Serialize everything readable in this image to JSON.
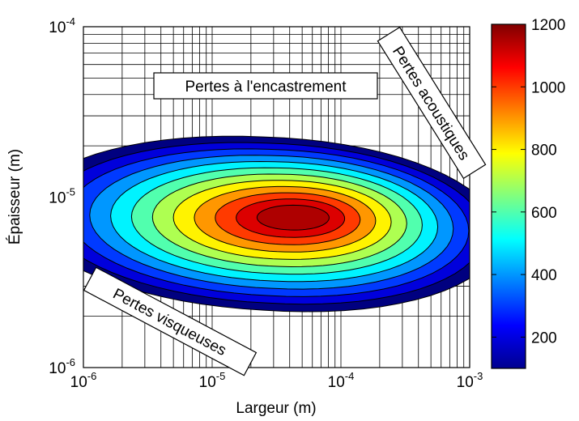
{
  "chart_data": {
    "type": "heatmap",
    "subtype": "filled-contour",
    "xlabel": "Largeur (m)",
    "ylabel": "Épaisseur (m)",
    "x_scale": "log",
    "y_scale": "log",
    "xlim": [
      1e-06,
      0.001
    ],
    "ylim": [
      1e-06,
      0.0001
    ],
    "x_ticks": [
      {
        "base": "10",
        "exp": "-6"
      },
      {
        "base": "10",
        "exp": "-5"
      },
      {
        "base": "10",
        "exp": "-4"
      },
      {
        "base": "10",
        "exp": "-3"
      }
    ],
    "y_ticks": [
      {
        "base": "10",
        "exp": "-6"
      },
      {
        "base": "10",
        "exp": "-5"
      },
      {
        "base": "10",
        "exp": "-4"
      }
    ],
    "grid": true,
    "colormap": "jet",
    "colorbar": {
      "range": [
        100,
        1200
      ],
      "ticks": [
        "200",
        "400",
        "600",
        "800",
        "1000",
        "1200"
      ]
    },
    "peak": {
      "x": 2.5e-05,
      "y": 7e-06,
      "value": 1200
    },
    "contour_levels": [
      100,
      200,
      300,
      400,
      500,
      600,
      700,
      800,
      900,
      1000,
      1100,
      1150
    ],
    "annotations": [
      {
        "text": "Pertes à l'encastrement"
      },
      {
        "text": "Pertes acoustiques"
      },
      {
        "text": "Pertes visqueuses"
      }
    ]
  }
}
